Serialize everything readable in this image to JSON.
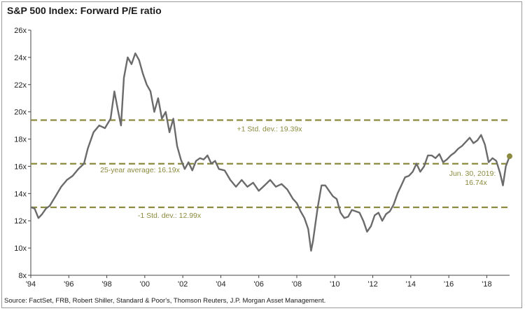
{
  "title": "S&P 500 Index: Forward P/E ratio",
  "source": "Source: FactSet, FRB, Robert Shiller, Standard & Poor's, Thomson Reuters, J.P. Morgan Asset Management.",
  "colors": {
    "series": "#6b6b6b",
    "reference_lines": "#8b8a3f",
    "axis": "#444444"
  },
  "chart_data": {
    "type": "line",
    "title": "S&P 500 Index: Forward P/E ratio",
    "xlabel": "",
    "ylabel": "",
    "xlim": [
      1994,
      2019.2
    ],
    "ylim": [
      8,
      26
    ],
    "x_tick_labels": [
      "'94",
      "'96",
      "'98",
      "'00",
      "'02",
      "'04",
      "'06",
      "'08",
      "'10",
      "'12",
      "'14",
      "'16",
      "'18"
    ],
    "x_tick_values": [
      1994,
      1996,
      1998,
      2000,
      2002,
      2004,
      2006,
      2008,
      2010,
      2012,
      2014,
      2016,
      2018
    ],
    "y_tick_labels": [
      "8x",
      "10x",
      "12x",
      "14x",
      "16x",
      "18x",
      "20x",
      "22x",
      "24x",
      "26x"
    ],
    "y_tick_values": [
      8,
      10,
      12,
      14,
      16,
      18,
      20,
      22,
      24,
      26
    ],
    "grid": false,
    "series": [
      {
        "x": [
          1994.0,
          1994.2,
          1994.4,
          1994.6,
          1994.8,
          1995.0,
          1995.3,
          1995.6,
          1995.9,
          1996.2,
          1996.5,
          1996.8,
          1997.0,
          1997.3,
          1997.6,
          1997.9,
          1998.2,
          1998.4,
          1998.6,
          1998.75,
          1998.9,
          1999.1,
          1999.3,
          1999.5,
          1999.7,
          1999.9,
          2000.1,
          2000.3,
          2000.5,
          2000.7,
          2000.9,
          2001.1,
          2001.3,
          2001.5,
          2001.7,
          2001.9,
          2002.1,
          2002.3,
          2002.5,
          2002.7,
          2002.9,
          2003.1,
          2003.3,
          2003.5,
          2003.7,
          2003.9,
          2004.2,
          2004.5,
          2004.8,
          2005.1,
          2005.4,
          2005.7,
          2006.0,
          2006.3,
          2006.6,
          2006.9,
          2007.2,
          2007.5,
          2007.8,
          2008.0,
          2008.2,
          2008.4,
          2008.6,
          2008.75,
          2008.85,
          2008.95,
          2009.1,
          2009.3,
          2009.5,
          2009.7,
          2009.9,
          2010.1,
          2010.3,
          2010.5,
          2010.7,
          2010.9,
          2011.1,
          2011.3,
          2011.5,
          2011.7,
          2011.9,
          2012.1,
          2012.3,
          2012.5,
          2012.7,
          2012.9,
          2013.1,
          2013.3,
          2013.5,
          2013.7,
          2013.9,
          2014.1,
          2014.3,
          2014.5,
          2014.7,
          2014.9,
          2015.1,
          2015.3,
          2015.5,
          2015.7,
          2015.9,
          2016.1,
          2016.3,
          2016.5,
          2016.7,
          2016.9,
          2017.1,
          2017.3,
          2017.5,
          2017.7,
          2017.9,
          2018.1,
          2018.3,
          2018.5,
          2018.7,
          2018.85,
          2019.0,
          2019.2
        ],
        "values": [
          13.0,
          12.9,
          12.2,
          12.5,
          12.9,
          13.1,
          13.8,
          14.5,
          15.0,
          15.3,
          15.8,
          16.2,
          17.3,
          18.5,
          19.0,
          18.8,
          19.5,
          21.5,
          20.0,
          19.0,
          22.5,
          24.0,
          23.5,
          24.3,
          23.8,
          22.8,
          22.0,
          21.5,
          20.0,
          21.0,
          19.5,
          20.0,
          18.5,
          19.5,
          17.5,
          16.5,
          15.8,
          16.3,
          15.7,
          16.4,
          16.6,
          16.5,
          16.8,
          16.2,
          16.4,
          15.8,
          15.7,
          15.0,
          14.5,
          15.0,
          14.5,
          14.8,
          14.2,
          14.6,
          15.0,
          14.5,
          14.7,
          14.3,
          13.6,
          13.3,
          12.7,
          12.2,
          11.4,
          9.8,
          10.5,
          11.5,
          13.0,
          14.6,
          14.6,
          14.2,
          13.8,
          13.6,
          12.6,
          12.2,
          12.3,
          12.8,
          12.7,
          12.6,
          12.0,
          11.2,
          11.6,
          12.4,
          12.6,
          12.0,
          12.5,
          12.7,
          13.2,
          14.0,
          14.6,
          15.2,
          15.3,
          15.6,
          16.2,
          15.6,
          16.0,
          16.8,
          16.8,
          16.6,
          16.9,
          16.3,
          16.5,
          16.8,
          17.0,
          17.3,
          17.5,
          17.8,
          18.1,
          17.7,
          17.9,
          18.3,
          17.6,
          16.3,
          16.6,
          16.4,
          15.5,
          14.6,
          16.0,
          16.74
        ]
      }
    ],
    "reference_lines": [
      {
        "value": 19.39,
        "label": "+1 Std. dev.: 19.39x"
      },
      {
        "value": 16.19,
        "label": "25-year average: 16.19x"
      },
      {
        "value": 12.99,
        "label": "-1 Std. dev.: 12.99x"
      }
    ],
    "annotations": [
      {
        "label_line1": "Jun. 30, 2019:",
        "label_line2": "16.74x",
        "x": 2019.2,
        "y": 16.74
      }
    ]
  }
}
